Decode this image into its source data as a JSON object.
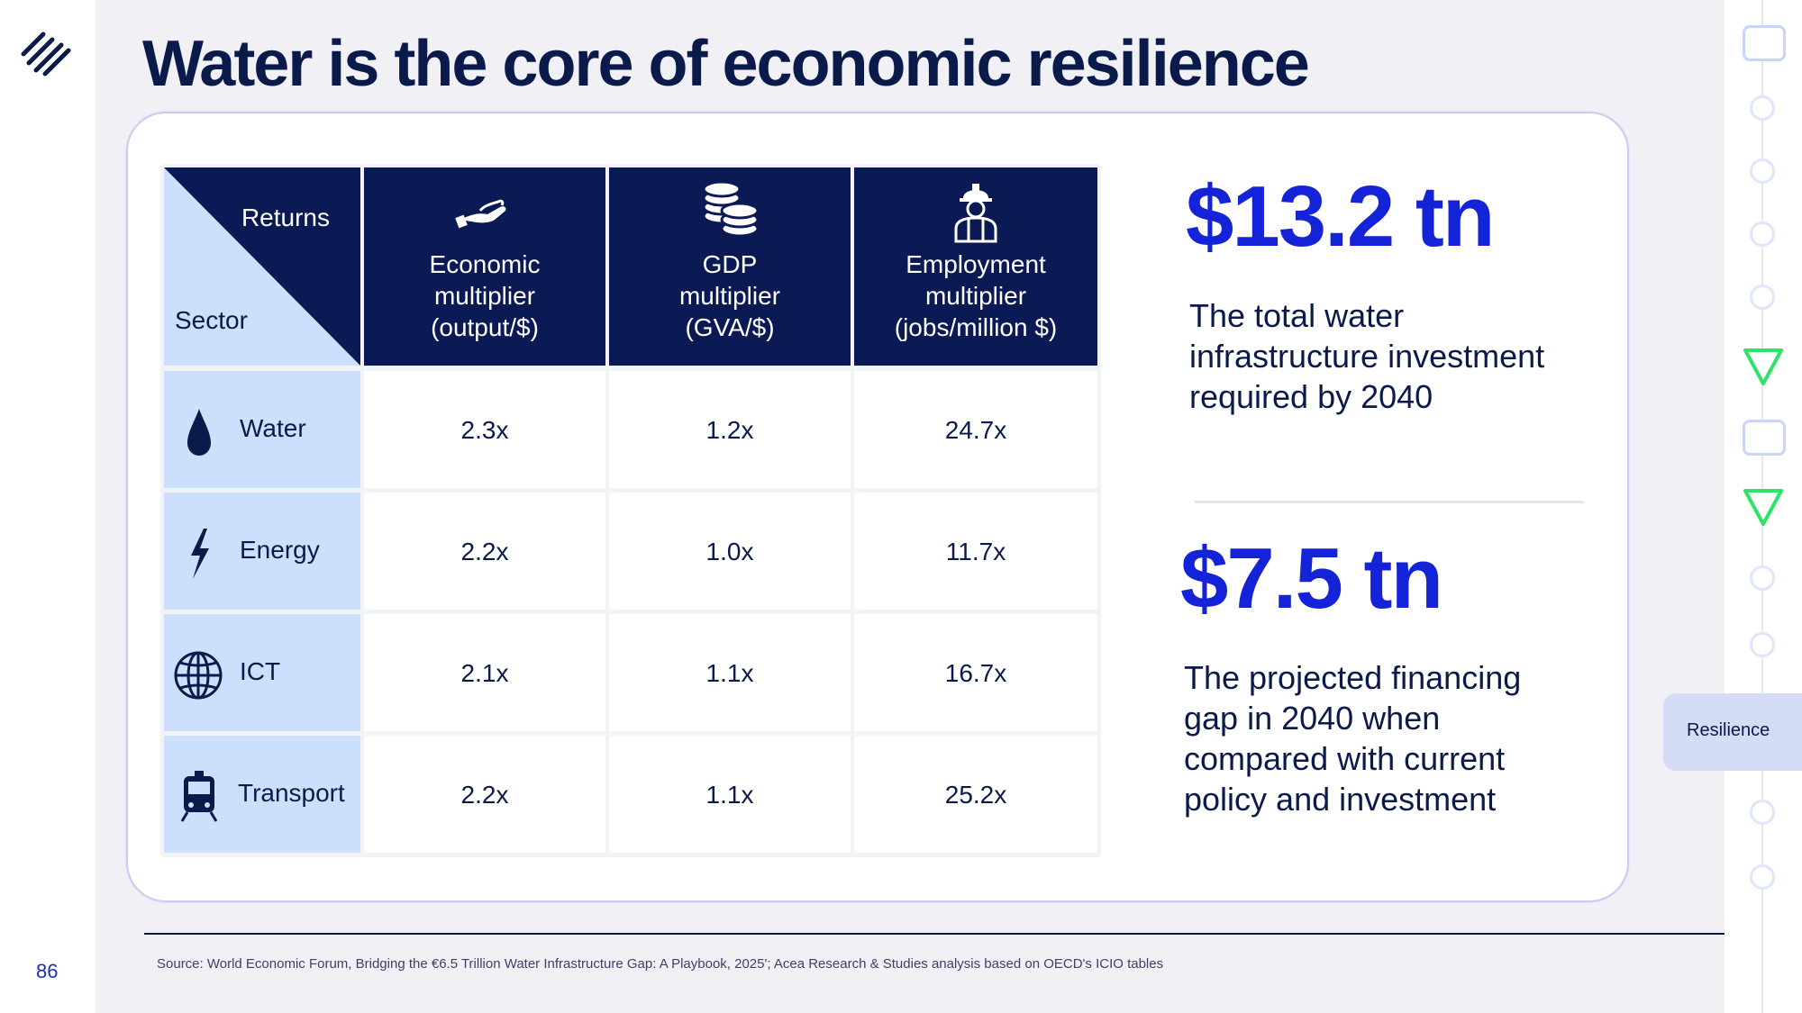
{
  "page": {
    "title": "Water is the core of economic resilience",
    "number": "86"
  },
  "table": {
    "corner": {
      "returns": "Returns",
      "sector": "Sector"
    },
    "columns": [
      {
        "label": "Economic\nmultiplier\n(output/$)",
        "icon": "hand-coin-icon"
      },
      {
        "label": "GDP\nmultiplier\n(GVA/$)",
        "icon": "coins-icon"
      },
      {
        "label": "Employment\nmultiplier\n(jobs/million $)",
        "icon": "worker-icon"
      }
    ],
    "rows": [
      {
        "sector": "Water",
        "icon": "water-drop-icon",
        "values": [
          "2.3x",
          "1.2x",
          "24.7x"
        ]
      },
      {
        "sector": "Energy",
        "icon": "lightning-icon",
        "values": [
          "2.2x",
          "1.0x",
          "11.7x"
        ]
      },
      {
        "sector": "ICT",
        "icon": "globe-icon",
        "values": [
          "2.1x",
          "1.1x",
          "16.7x"
        ]
      },
      {
        "sector": "Transport",
        "icon": "train-icon",
        "values": [
          "2.2x",
          "1.1x",
          "25.2x"
        ]
      }
    ]
  },
  "stats": [
    {
      "value": "$13.2 tn",
      "description": "The total water infrastructure investment required by 2040"
    },
    {
      "value": "$7.5 tn",
      "description": "The projected financing gap in 2040 when compared with current policy and investment"
    }
  ],
  "source": "Source: World Economic Forum, Bridging the €6.5 Trillion Water Infrastructure Gap: A Playbook, 2025'; Acea Research & Studies analysis based on OECD's ICIO tables",
  "navigation": {
    "active_section": "Resilience"
  },
  "colors": {
    "navy": "#0b1a55",
    "accent_blue": "#1422d8",
    "light_blue": "#cde0fb",
    "green_marker": "#2ee26a"
  }
}
